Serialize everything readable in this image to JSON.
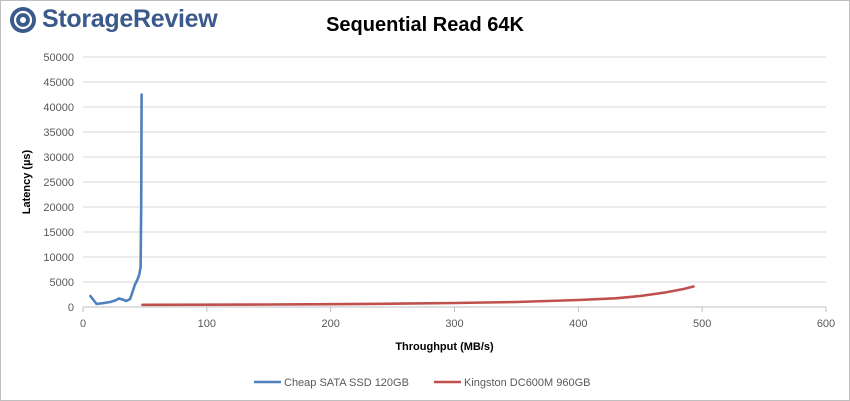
{
  "brand": {
    "name": "StorageReview",
    "logo_icon": "storagereview-logo-icon"
  },
  "chart_data": {
    "type": "line",
    "title": "Sequential Read 64K",
    "xlabel": "Throughput (MB/s)",
    "ylabel": "Latency (µs)",
    "xlim": [
      0,
      600
    ],
    "ylim": [
      0,
      50000
    ],
    "xticks": [
      0,
      100,
      200,
      300,
      400,
      500,
      600
    ],
    "yticks": [
      0,
      5000,
      10000,
      15000,
      20000,
      25000,
      30000,
      35000,
      40000,
      45000,
      50000
    ],
    "grid": true,
    "legend_position": "bottom",
    "series": [
      {
        "name": "Cheap SATA SSD 120GB",
        "color": "#4f81bd",
        "points": [
          [
            6,
            2200
          ],
          [
            11,
            600
          ],
          [
            17,
            800
          ],
          [
            22,
            1000
          ],
          [
            26,
            1300
          ],
          [
            29,
            1700
          ],
          [
            32,
            1500
          ],
          [
            35,
            1200
          ],
          [
            38,
            1600
          ],
          [
            40,
            3000
          ],
          [
            42,
            4500
          ],
          [
            44,
            5500
          ],
          [
            45.5,
            6500
          ],
          [
            46.5,
            8000
          ],
          [
            47,
            20000
          ],
          [
            47.3,
            42500
          ]
        ]
      },
      {
        "name": "Kingston DC600M 960GB",
        "color": "#c0504d",
        "points": [
          [
            48,
            450
          ],
          [
            100,
            460
          ],
          [
            150,
            500
          ],
          [
            200,
            560
          ],
          [
            250,
            660
          ],
          [
            300,
            800
          ],
          [
            350,
            1000
          ],
          [
            400,
            1400
          ],
          [
            430,
            1750
          ],
          [
            450,
            2200
          ],
          [
            470,
            2900
          ],
          [
            485,
            3600
          ],
          [
            493,
            4100
          ]
        ]
      }
    ]
  }
}
